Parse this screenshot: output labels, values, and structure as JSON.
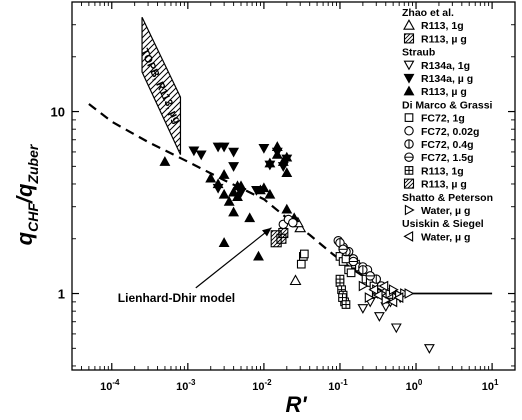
{
  "chart_data": {
    "type": "scatter",
    "title": "",
    "xlabel": "R'",
    "ylabel_main": "q",
    "ylabel_sub1": "CHF",
    "ylabel_slash": "/q",
    "ylabel_sub2": "Zuber",
    "x_scale": "log",
    "y_scale": "log",
    "xlim": [
      3e-05,
      20
    ],
    "ylim": [
      0.38,
      40
    ],
    "grid": false,
    "legend_position": "top-right",
    "x_ticks": [
      {
        "value": 0.0001,
        "base": "10",
        "exp": "-4"
      },
      {
        "value": 0.001,
        "base": "10",
        "exp": "-3"
      },
      {
        "value": 0.01,
        "base": "10",
        "exp": "-2"
      },
      {
        "value": 0.1,
        "base": "10",
        "exp": "-1"
      },
      {
        "value": 1,
        "base": "10",
        "exp": "0"
      },
      {
        "value": 10,
        "base": "10",
        "exp": "1"
      }
    ],
    "y_ticks": [
      {
        "value": 1,
        "label": "1"
      },
      {
        "value": 10,
        "label": "10"
      }
    ],
    "legend_groups": [
      {
        "title": "Zhao et al.",
        "items": [
          {
            "label": "R113, 1g",
            "marker": "triangle-up-open"
          },
          {
            "label": "R113, µ g",
            "marker": "hatch-square"
          }
        ]
      },
      {
        "title": "Straub",
        "items": [
          {
            "label": "R134a, 1g",
            "marker": "triangle-down-open"
          },
          {
            "label": "R134a, µ g",
            "marker": "triangle-down-filled"
          },
          {
            "label": "R113, µ g",
            "marker": "triangle-up-filled"
          }
        ]
      },
      {
        "title": "Di Marco & Grassi",
        "items": [
          {
            "label": "FC72, 1g",
            "marker": "square-open"
          },
          {
            "label": "FC72, 0.02g",
            "marker": "circle-open"
          },
          {
            "label": "FC72, 0.4g",
            "marker": "circle-vline"
          },
          {
            "label": "FC72, 1.5g",
            "marker": "circle-hline"
          },
          {
            "label": "R113, 1g",
            "marker": "square-plus"
          },
          {
            "label": "R113, µ g",
            "marker": "square-hatch-large"
          }
        ]
      },
      {
        "title": "Shatto & Peterson",
        "items": [
          {
            "label": "Water, µ g",
            "marker": "triangle-right-open"
          }
        ]
      },
      {
        "title": "Usiskin & Siegel",
        "items": [
          {
            "label": "Water, µ g",
            "marker": "triangle-left-open"
          }
        ]
      }
    ],
    "annotations": [
      {
        "text": "Lienhard-Dhir model",
        "text_x": 0.00012,
        "text_y": 0.9,
        "arrow_to_x": 0.0126,
        "arrow_to_y": 2.3
      },
      {
        "text": "TOPB, R113, µg"
      }
    ],
    "lienhard_dhir_model": {
      "name": "Lienhard-Dhir model",
      "x": [
        5e-05,
        0.0001,
        0.0003,
        0.001,
        0.003,
        0.01,
        0.02,
        0.04,
        0.08,
        0.15,
        0.3,
        0.6,
        1,
        10
      ],
      "y": [
        11,
        8.8,
        6.8,
        5.3,
        4.2,
        3.3,
        2.6,
        2.1,
        1.65,
        1.35,
        1.12,
        1.0,
        1.0,
        1.0
      ]
    },
    "topb_band": {
      "name": "TOPB, R113, µg",
      "x": [
        0.00025,
        0.00025,
        0.0008,
        0.0008
      ],
      "y": [
        33,
        16.5,
        5.8,
        12
      ]
    },
    "series": [
      {
        "name": "R113, 1g",
        "group": "Zhao et al.",
        "marker": "triangle-up-open",
        "x": [
          0.026,
          0.03,
          0.028
        ],
        "y": [
          1.18,
          2.3,
          2.45
        ]
      },
      {
        "name": "R113, µ g",
        "group": "Zhao et al.",
        "marker": "hatch-square",
        "x": [
          0.017,
          0.018
        ],
        "y": [
          2.0,
          2.15
        ]
      },
      {
        "name": "R134a, 1g",
        "group": "Straub",
        "marker": "triangle-down-open",
        "x": [
          0.2,
          0.25,
          0.33,
          0.4,
          0.46,
          0.55,
          0.62,
          1.5
        ],
        "y": [
          0.83,
          0.9,
          0.75,
          0.85,
          0.9,
          0.65,
          0.95,
          0.5
        ]
      },
      {
        "name": "R134a, µ g",
        "group": "Straub",
        "marker": "triangle-down-filled",
        "x": [
          0.0025,
          0.003,
          0.004,
          0.0012,
          0.0015,
          0.004,
          0.0025,
          0.005,
          0.008,
          0.012,
          0.015,
          0.02,
          0.01,
          0.018
        ],
        "y": [
          6.4,
          6.4,
          6.0,
          6.1,
          5.8,
          5.0,
          3.8,
          3.6,
          3.7,
          5.1,
          6.0,
          5.5,
          6.3,
          5.0
        ]
      },
      {
        "name": "R113, µ g",
        "group": "Straub",
        "marker": "triangle-up-filled",
        "x": [
          0.0005,
          0.002,
          0.0025,
          0.003,
          0.003,
          0.0035,
          0.004,
          0.004,
          0.005,
          0.0045,
          0.003,
          0.01,
          0.012,
          0.015,
          0.015,
          0.018,
          0.02,
          0.02,
          0.012,
          0.02,
          0.025,
          0.0085,
          0.0065,
          0.0045,
          0.009
        ],
        "y": [
          5.3,
          4.3,
          4.0,
          4.5,
          3.5,
          3.2,
          3.6,
          2.8,
          3.9,
          3.4,
          1.9,
          3.8,
          3.5,
          6.4,
          5.8,
          5.3,
          4.6,
          5.6,
          5.2,
          2.9,
          2.6,
          1.6,
          2.6,
          3.9,
          3.7
        ]
      },
      {
        "name": "FC72, 1g",
        "group": "Di Marco & Grassi",
        "marker": "square-open",
        "x": [
          0.031,
          0.033,
          0.034,
          0.1,
          0.11,
          0.12,
          0.13,
          0.14,
          0.16,
          0.18,
          0.22,
          0.25,
          0.28,
          0.3
        ],
        "y": [
          1.45,
          1.6,
          1.65,
          1.6,
          1.5,
          1.55,
          1.35,
          1.3,
          1.45,
          1.4,
          1.2,
          1.15,
          1.1,
          1.0
        ]
      },
      {
        "name": "FC72, 0.02g",
        "group": "Di Marco & Grassi",
        "marker": "circle-open",
        "x": [
          0.018,
          0.021,
          0.024,
          0.095,
          0.11,
          0.13,
          0.15,
          0.2,
          0.23
        ],
        "y": [
          2.4,
          2.55,
          2.45,
          1.95,
          1.8,
          1.7,
          1.55,
          1.4,
          1.35
        ]
      },
      {
        "name": "FC72, 0.4g",
        "group": "Di Marco & Grassi",
        "marker": "circle-vline",
        "x": [
          0.1,
          0.12,
          0.2,
          0.3
        ],
        "y": [
          1.9,
          1.7,
          1.35,
          1.2
        ]
      },
      {
        "name": "FC72, 1.5g",
        "group": "Di Marco & Grassi",
        "marker": "circle-hline",
        "x": [
          0.11,
          0.15,
          0.25,
          0.35
        ],
        "y": [
          1.75,
          1.5,
          1.25,
          1.1
        ]
      },
      {
        "name": "R113, 1g",
        "group": "Di Marco & Grassi",
        "marker": "square-plus",
        "x": [
          0.1,
          0.105,
          0.11,
          0.115,
          0.1,
          0.108,
          0.12
        ],
        "y": [
          1.15,
          1.05,
          0.98,
          0.9,
          1.2,
          0.95,
          0.87
        ]
      },
      {
        "name": "R113, µ g",
        "group": "Di Marco & Grassi",
        "marker": "square-hatch-large",
        "x": [
          0.0145
        ],
        "y": [
          2.0
        ]
      },
      {
        "name": "Water, µ g",
        "group": "Shatto & Peterson",
        "marker": "triangle-right-open",
        "x": [
          0.2,
          0.24,
          0.3,
          0.35,
          0.4,
          0.45,
          0.5,
          0.55,
          0.6,
          0.7,
          0.8
        ],
        "y": [
          1.1,
          0.95,
          1.05,
          1.0,
          0.92,
          1.0,
          1.05,
          0.95,
          0.98,
          1.0,
          1.0
        ]
      },
      {
        "name": "Water, µ g",
        "group": "Usiskin & Siegel",
        "marker": "triangle-left-open",
        "x": [
          0.28,
          0.32,
          0.38,
          0.5,
          0.6
        ],
        "y": [
          1.05,
          0.98,
          1.1,
          0.9,
          0.95
        ]
      }
    ]
  }
}
